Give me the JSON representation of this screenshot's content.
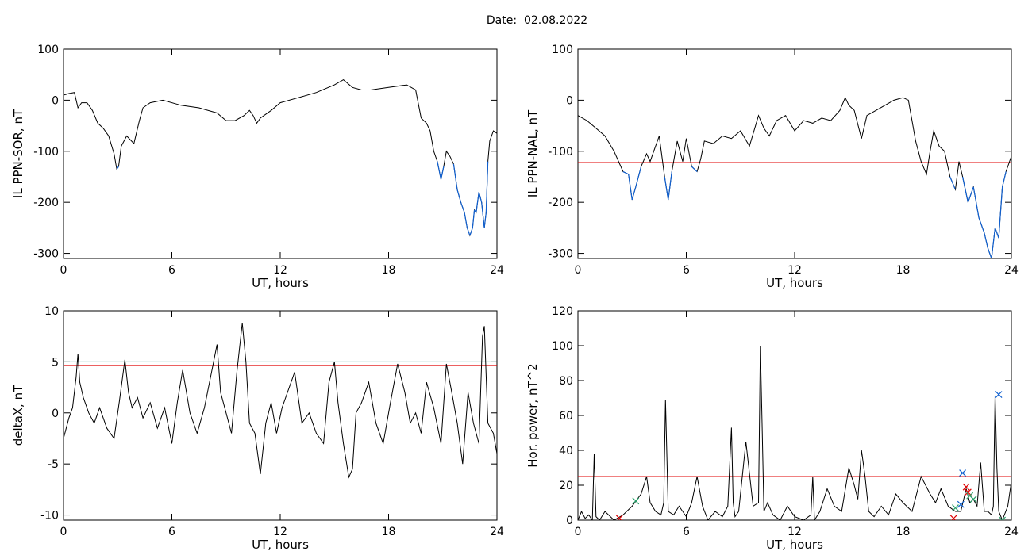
{
  "header": {
    "date_label": "Date:",
    "date_value": "02.08.2022"
  },
  "chart_data": [
    {
      "type": "line",
      "ylabel": "IL PPN-SOR, nT",
      "xlabel": "UT, hours",
      "xlim": [
        0,
        24
      ],
      "ylim": [
        -310,
        100
      ],
      "xticks": [
        0,
        6,
        12,
        18,
        24
      ],
      "yticks": [
        100,
        0,
        -100,
        -200,
        -300
      ],
      "threshold": {
        "value": -115,
        "color": "#e00000"
      },
      "highlight_color": "#1060d0",
      "series": [
        {
          "color": "#000000",
          "x": [
            0,
            0.3,
            0.6,
            0.8,
            1.0,
            1.3,
            1.6,
            1.9,
            2.2,
            2.5,
            2.8,
            2.95,
            3.05,
            3.2,
            3.5,
            3.9,
            4.2,
            4.4,
            4.8,
            5.5,
            6.5,
            7.5,
            8.5,
            9.0,
            9.5,
            10.0,
            10.3,
            10.5,
            10.7,
            10.9,
            11.5,
            12.0,
            13.0,
            14.0,
            15.0,
            15.5,
            16.0,
            16.5,
            17.0,
            18.0,
            19.0,
            19.5,
            19.8,
            20.1,
            20.3,
            20.5,
            20.7,
            20.9,
            21.05,
            21.2,
            21.4,
            21.6,
            21.8,
            22.0,
            22.2,
            22.35,
            22.5,
            22.65,
            22.75,
            22.85,
            23.0,
            23.15,
            23.3,
            23.4,
            23.5,
            23.6,
            23.8,
            24.0
          ],
          "y": [
            10,
            13,
            15,
            -15,
            -5,
            -5,
            -20,
            -45,
            -55,
            -70,
            -105,
            -135,
            -130,
            -90,
            -70,
            -85,
            -40,
            -15,
            -5,
            0,
            -10,
            -15,
            -25,
            -40,
            -40,
            -30,
            -20,
            -30,
            -45,
            -35,
            -20,
            -5,
            5,
            15,
            30,
            40,
            25,
            20,
            20,
            25,
            30,
            20,
            -35,
            -45,
            -60,
            -100,
            -120,
            -155,
            -130,
            -100,
            -110,
            -125,
            -175,
            -200,
            -220,
            -250,
            -265,
            -250,
            -215,
            -220,
            -180,
            -200,
            -250,
            -220,
            -120,
            -80,
            -60,
            -65
          ]
        }
      ]
    },
    {
      "type": "line",
      "ylabel": "IL PPN-NAL, nT",
      "xlabel": "UT, hours",
      "xlim": [
        0,
        24
      ],
      "ylim": [
        -310,
        100
      ],
      "xticks": [
        0,
        6,
        12,
        18,
        24
      ],
      "yticks": [
        100,
        0,
        -100,
        -200,
        -300
      ],
      "threshold": {
        "value": -122,
        "color": "#e00000"
      },
      "highlight_color": "#1060d0",
      "series": [
        {
          "color": "#000000",
          "x": [
            0,
            0.5,
            1.0,
            1.5,
            2.0,
            2.5,
            2.8,
            3.0,
            3.2,
            3.5,
            3.8,
            4.0,
            4.2,
            4.5,
            4.8,
            5.0,
            5.2,
            5.5,
            5.8,
            6.0,
            6.3,
            6.6,
            6.8,
            7.0,
            7.5,
            8.0,
            8.5,
            9.0,
            9.5,
            10.0,
            10.3,
            10.6,
            11.0,
            11.5,
            12.0,
            12.5,
            13.0,
            13.5,
            14.0,
            14.5,
            14.8,
            15.0,
            15.3,
            15.7,
            16.0,
            16.5,
            17.0,
            17.5,
            18.0,
            18.3,
            18.7,
            19.0,
            19.3,
            19.5,
            19.7,
            20.0,
            20.3,
            20.6,
            20.9,
            21.1,
            21.3,
            21.6,
            21.9,
            22.2,
            22.5,
            22.7,
            22.9,
            23.1,
            23.3,
            23.5,
            23.7,
            24.0
          ],
          "y": [
            -30,
            -40,
            -55,
            -70,
            -100,
            -140,
            -145,
            -195,
            -170,
            -130,
            -105,
            -120,
            -100,
            -70,
            -150,
            -195,
            -140,
            -80,
            -120,
            -75,
            -130,
            -140,
            -115,
            -80,
            -85,
            -70,
            -75,
            -60,
            -90,
            -30,
            -55,
            -70,
            -40,
            -30,
            -60,
            -40,
            -45,
            -35,
            -40,
            -20,
            5,
            -10,
            -20,
            -75,
            -30,
            -20,
            -10,
            0,
            5,
            0,
            -80,
            -120,
            -145,
            -100,
            -60,
            -90,
            -100,
            -150,
            -175,
            -120,
            -150,
            -200,
            -170,
            -230,
            -260,
            -290,
            -310,
            -250,
            -270,
            -170,
            -140,
            -110
          ]
        }
      ]
    },
    {
      "type": "line",
      "ylabel": "deltaX, nT",
      "xlabel": "UT, hours",
      "xlim": [
        0,
        24
      ],
      "ylim": [
        -10.5,
        10
      ],
      "xticks": [
        0,
        6,
        12,
        18,
        24
      ],
      "yticks": [
        10,
        5,
        0,
        -5,
        -10
      ],
      "thresholds": [
        {
          "value": 5.0,
          "color": "#3a9a8a"
        },
        {
          "value": 4.65,
          "color": "#e00000"
        }
      ],
      "series": [
        {
          "color": "#000000",
          "x": [
            0,
            0.3,
            0.5,
            0.7,
            0.8,
            0.9,
            1.1,
            1.4,
            1.7,
            2.0,
            2.4,
            2.8,
            3.1,
            3.4,
            3.6,
            3.8,
            4.1,
            4.4,
            4.8,
            5.2,
            5.6,
            6.0,
            6.3,
            6.6,
            7.0,
            7.4,
            7.8,
            8.2,
            8.5,
            8.7,
            9.0,
            9.3,
            9.6,
            9.9,
            10.1,
            10.3,
            10.6,
            10.9,
            11.2,
            11.5,
            11.8,
            12.1,
            12.4,
            12.8,
            13.2,
            13.6,
            14.0,
            14.4,
            14.7,
            15.0,
            15.2,
            15.5,
            15.8,
            16.0,
            16.2,
            16.5,
            16.9,
            17.3,
            17.7,
            18.1,
            18.5,
            18.9,
            19.2,
            19.5,
            19.8,
            20.1,
            20.5,
            20.9,
            21.2,
            21.5,
            21.8,
            22.1,
            22.4,
            22.7,
            23.0,
            23.2,
            23.3,
            23.5,
            23.8,
            24.0
          ],
          "y": [
            -2.5,
            -0.5,
            0.5,
            3.5,
            5.8,
            3.0,
            1.5,
            0,
            -1,
            0.5,
            -1.5,
            -2.5,
            1.2,
            5.2,
            2.0,
            0.5,
            1.5,
            -0.5,
            1.0,
            -1.5,
            0.5,
            -3.0,
            1.0,
            4.2,
            0.0,
            -2.0,
            0.5,
            4.0,
            6.7,
            2.0,
            0.0,
            -2.0,
            4.0,
            8.8,
            5.0,
            -1.0,
            -2.0,
            -6.0,
            -1.0,
            1.0,
            -2.0,
            0.5,
            2.0,
            4.0,
            -1.0,
            0.0,
            -2.0,
            -3.0,
            3.0,
            5.0,
            1.0,
            -3.0,
            -6.3,
            -5.5,
            0.0,
            1.0,
            3.0,
            -1.0,
            -3.0,
            1.0,
            4.8,
            2.0,
            -1.0,
            0.0,
            -2.0,
            3.0,
            0.5,
            -3.0,
            4.8,
            2.0,
            -1.0,
            -5.0,
            2.0,
            -1.0,
            -3.0,
            7.5,
            8.5,
            -1.0,
            -2.0,
            -4.0
          ]
        }
      ]
    },
    {
      "type": "line",
      "ylabel": "Hor. power, nT^2",
      "xlabel": "UT, hours",
      "xlim": [
        0,
        24
      ],
      "ylim": [
        0,
        120
      ],
      "xticks": [
        0,
        6,
        12,
        18,
        24
      ],
      "yticks": [
        120,
        100,
        80,
        60,
        40,
        20,
        0
      ],
      "threshold": {
        "value": 25,
        "color": "#e00000"
      },
      "series": [
        {
          "color": "#000000",
          "x": [
            0,
            0.2,
            0.4,
            0.6,
            0.8,
            0.9,
            1.0,
            1.2,
            1.5,
            2.0,
            2.5,
            3.0,
            3.5,
            3.8,
            4.0,
            4.3,
            4.6,
            4.75,
            4.85,
            5.0,
            5.3,
            5.6,
            6.0,
            6.3,
            6.6,
            6.9,
            7.2,
            7.6,
            8.0,
            8.3,
            8.5,
            8.6,
            8.7,
            8.9,
            9.3,
            9.7,
            10.0,
            10.1,
            10.2,
            10.3,
            10.5,
            10.8,
            11.2,
            11.6,
            12.0,
            12.5,
            12.9,
            13.0,
            13.1,
            13.4,
            13.8,
            14.2,
            14.6,
            15.0,
            15.3,
            15.5,
            15.7,
            15.9,
            16.1,
            16.4,
            16.8,
            17.2,
            17.6,
            18.0,
            18.5,
            19.0,
            19.5,
            19.8,
            20.1,
            20.5,
            20.9,
            21.2,
            21.5,
            21.7,
            21.9,
            22.1,
            22.3,
            22.5,
            22.7,
            22.9,
            23.0,
            23.1,
            23.2,
            23.3,
            23.5,
            23.8,
            24.0
          ],
          "y": [
            0,
            5,
            1,
            3,
            0,
            38,
            2,
            0,
            5,
            0,
            3,
            8,
            15,
            25,
            10,
            5,
            3,
            10,
            69,
            5,
            3,
            8,
            2,
            10,
            25,
            8,
            0,
            5,
            2,
            8,
            53,
            10,
            2,
            5,
            45,
            8,
            10,
            100,
            55,
            5,
            10,
            3,
            0,
            8,
            2,
            0,
            3,
            25,
            0,
            5,
            18,
            8,
            5,
            30,
            20,
            12,
            40,
            25,
            5,
            2,
            8,
            3,
            15,
            10,
            5,
            25,
            15,
            10,
            18,
            8,
            5,
            5,
            18,
            10,
            12,
            8,
            33,
            5,
            5,
            3,
            8,
            72,
            30,
            5,
            0,
            8,
            22
          ]
        }
      ],
      "markers": [
        {
          "x": 2.3,
          "y": 1,
          "color": "#e00000"
        },
        {
          "x": 3.2,
          "y": 11,
          "color": "#2aa06a"
        },
        {
          "x": 20.8,
          "y": 1,
          "color": "#e00000"
        },
        {
          "x": 20.9,
          "y": 7,
          "color": "#2aa06a"
        },
        {
          "x": 21.2,
          "y": 9,
          "color": "#1060d0"
        },
        {
          "x": 21.3,
          "y": 27,
          "color": "#1060d0"
        },
        {
          "x": 21.5,
          "y": 19,
          "color": "#e00000"
        },
        {
          "x": 21.6,
          "y": 16,
          "color": "#e00000"
        },
        {
          "x": 21.7,
          "y": 14,
          "color": "#2aa06a"
        },
        {
          "x": 21.9,
          "y": 12,
          "color": "#2aa06a"
        },
        {
          "x": 23.3,
          "y": 72,
          "color": "#1060d0"
        },
        {
          "x": 23.5,
          "y": 0,
          "color": "#2aa06a"
        }
      ]
    }
  ]
}
